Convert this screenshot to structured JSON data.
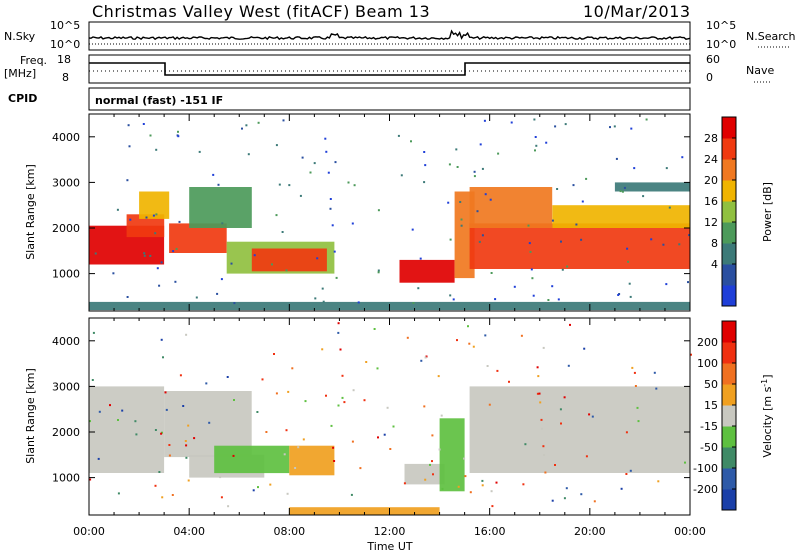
{
  "header": {
    "station": "Christmas Valley West (fitACF)",
    "beam": "Beam 13",
    "date": "10/Mar/2013"
  },
  "top_panels": {
    "nsky_label": "N.Sky",
    "nsky_ticks": [
      "10^5",
      "10^0"
    ],
    "nsearch_label": "N.Search",
    "nsearch_ticks": [
      "10^5",
      "10^0"
    ],
    "freq_label": "Freq.",
    "freq_unit": "[MHz]",
    "freq_ticks": [
      "18",
      "8"
    ],
    "nave_label": "Nave",
    "nave_ticks": [
      "60",
      "0"
    ],
    "cpid_label": "CPID",
    "cpid_value": "normal (fast) -151 IF"
  },
  "colors": {
    "power": [
      "#1f3fd8",
      "#2a4fa0",
      "#3c7a78",
      "#4c9a5a",
      "#90c040",
      "#f0b400",
      "#f07820",
      "#f03a10",
      "#e00000"
    ],
    "velocity": [
      "#1a3fa8",
      "#2e5aa8",
      "#3f8a66",
      "#5ec040",
      "#c8c8c0",
      "#f0a020",
      "#f07020",
      "#f03010",
      "#e00000"
    ]
  },
  "chart_data": [
    {
      "type": "heatmap",
      "name": "power",
      "ylabel": "Slant Range [km]",
      "xlabel": "",
      "ylim": [
        180,
        4500
      ],
      "yticks": [
        "4000",
        "3000",
        "2000",
        "1000"
      ],
      "xticks": [
        "00:00",
        "04:00",
        "08:00",
        "12:00",
        "16:00",
        "20:00",
        "00:00"
      ],
      "colorbar_label": "Power [dB]",
      "colorbar_ticks": [
        "28",
        "24",
        "20",
        "16",
        "12",
        "8",
        "4"
      ],
      "regions": [
        {
          "t0": 0.0,
          "t1": 3.0,
          "r0": 1200,
          "r1": 2050,
          "level": 8
        },
        {
          "t0": 1.5,
          "t1": 3.0,
          "r0": 1800,
          "r1": 2300,
          "level": 7
        },
        {
          "t0": 2.0,
          "t1": 3.2,
          "r0": 2200,
          "r1": 2800,
          "level": 5
        },
        {
          "t0": 3.2,
          "t1": 5.5,
          "r0": 1450,
          "r1": 2100,
          "level": 7
        },
        {
          "t0": 4.0,
          "t1": 6.5,
          "r0": 2000,
          "r1": 2900,
          "level": 3
        },
        {
          "t0": 5.5,
          "t1": 9.8,
          "r0": 1000,
          "r1": 1700,
          "level": 4
        },
        {
          "t0": 6.5,
          "t1": 9.5,
          "r0": 1050,
          "r1": 1550,
          "level": 7
        },
        {
          "t0": 12.4,
          "t1": 14.6,
          "r0": 800,
          "r1": 1300,
          "level": 8
        },
        {
          "t0": 14.6,
          "t1": 15.4,
          "r0": 900,
          "r1": 2800,
          "level": 6
        },
        {
          "t0": 15.2,
          "t1": 24.0,
          "r0": 1100,
          "r1": 2100,
          "level": 7
        },
        {
          "t0": 15.2,
          "t1": 18.5,
          "r0": 2000,
          "r1": 2900,
          "level": 6
        },
        {
          "t0": 18.5,
          "t1": 24.0,
          "r0": 2000,
          "r1": 2500,
          "level": 5
        },
        {
          "t0": 21.0,
          "t1": 24.0,
          "r0": 2800,
          "r1": 3000,
          "level": 2
        },
        {
          "t0": 0.0,
          "t1": 24.0,
          "r0": 200,
          "r1": 380,
          "level": 2
        }
      ]
    },
    {
      "type": "heatmap",
      "name": "velocity",
      "ylabel": "Slant Range [km]",
      "xlabel": "Time UT",
      "ylim": [
        180,
        4500
      ],
      "yticks": [
        "4000",
        "3000",
        "2000",
        "1000"
      ],
      "xticks": [
        "00:00",
        "04:00",
        "08:00",
        "12:00",
        "16:00",
        "20:00",
        "00:00"
      ],
      "colorbar_label": "Velocity [m s",
      "colorbar_unit_sup": "-1",
      "colorbar_ticks": [
        "200",
        "100",
        "50",
        "15",
        "-15",
        "-50",
        "-100",
        "-200"
      ],
      "regions": [
        {
          "t0": 0.0,
          "t1": 3.0,
          "r0": 1100,
          "r1": 3000,
          "level": 4
        },
        {
          "t0": 3.0,
          "t1": 6.5,
          "r0": 1450,
          "r1": 2900,
          "level": 4
        },
        {
          "t0": 4.0,
          "t1": 7.0,
          "r0": 1000,
          "r1": 1500,
          "level": 4
        },
        {
          "t0": 5.0,
          "t1": 8.0,
          "r0": 1100,
          "r1": 1700,
          "level": 3
        },
        {
          "t0": 8.0,
          "t1": 9.8,
          "r0": 1050,
          "r1": 1700,
          "level": 5
        },
        {
          "t0": 12.6,
          "t1": 14.2,
          "r0": 850,
          "r1": 1300,
          "level": 4
        },
        {
          "t0": 14.0,
          "t1": 15.0,
          "r0": 700,
          "r1": 2300,
          "level": 3
        },
        {
          "t0": 15.2,
          "t1": 24.0,
          "r0": 1100,
          "r1": 3000,
          "level": 4
        },
        {
          "t0": 8.0,
          "t1": 14.0,
          "r0": 180,
          "r1": 350,
          "level": 5
        }
      ]
    }
  ]
}
